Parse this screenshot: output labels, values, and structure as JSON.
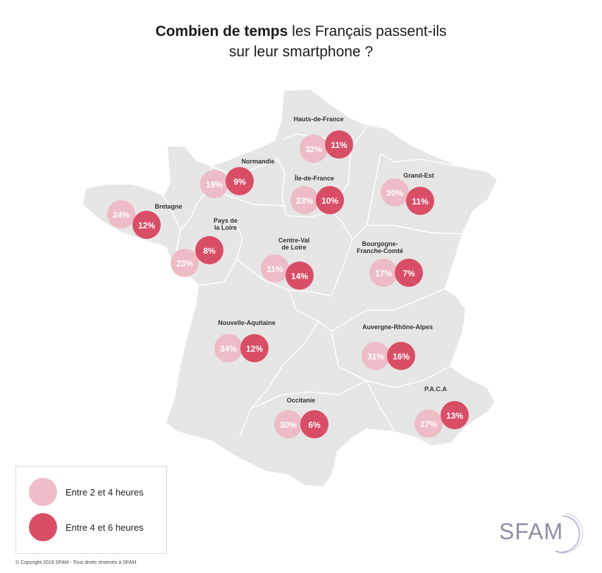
{
  "title": {
    "bold": "Combien de temps",
    "line1_rest": " les Français passent-ils",
    "line2": "sur leur smartphone ?"
  },
  "colors": {
    "light": "#eebcc6",
    "dark": "#d94e67",
    "map": "#e6e6e6",
    "border": "#ffffff"
  },
  "regions": [
    {
      "name": "Hauts-de-France",
      "light": "32%",
      "dark": "11%"
    },
    {
      "name": "Normandie",
      "light": "19%",
      "dark": "9%"
    },
    {
      "name": "Île-de-France",
      "light": "23%",
      "dark": "10%"
    },
    {
      "name": "Grand-Est",
      "light": "30%",
      "dark": "11%"
    },
    {
      "name": "Bretagne",
      "light": "24%",
      "dark": "12%"
    },
    {
      "name": "Pays de la Loire",
      "light": "23%",
      "dark": "8%"
    },
    {
      "name": "Centre-Val de Loire",
      "light": "11%",
      "dark": "14%"
    },
    {
      "name": "Bourgogne-Franche-Comté",
      "light": "17%",
      "dark": "7%"
    },
    {
      "name": "Nouvelle-Aquitaine",
      "light": "34%",
      "dark": "12%"
    },
    {
      "name": "Auvergne-Rhône-Alpes",
      "light": "31%",
      "dark": "16%"
    },
    {
      "name": "Occitanie",
      "light": "30%",
      "dark": "6%"
    },
    {
      "name": "P.A.C.A",
      "light": "27%",
      "dark": "13%"
    }
  ],
  "legend": {
    "light_label": "Entre 2 et 4 heures",
    "dark_label": "Entre 4 et 6 heures"
  },
  "logo_text": "SFAM",
  "copyright": "© Copyright 2019 SFAM - Tous droits réservés à SFAM"
}
